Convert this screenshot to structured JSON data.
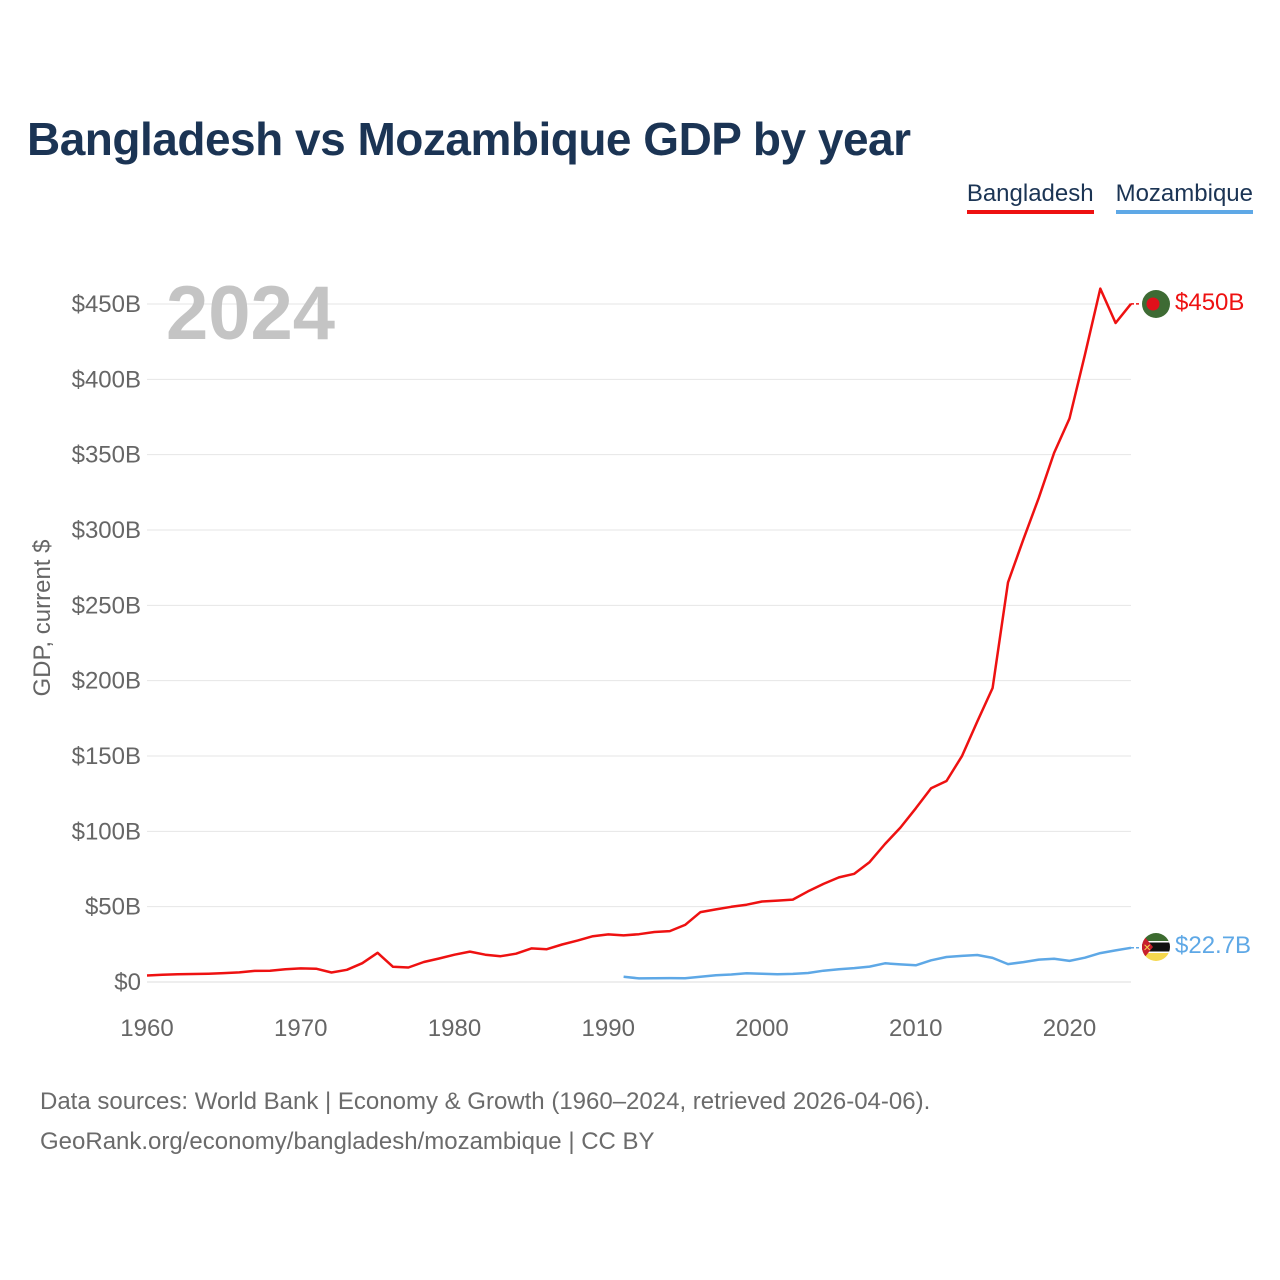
{
  "title": "Bangladesh vs Mozambique GDP by year",
  "legend": {
    "bangladesh": "Bangladesh",
    "mozambique": "Mozambique"
  },
  "colors": {
    "bangladesh": "#ee1111",
    "mozambique": "#5ea8e6",
    "text": "#1b3454",
    "axis": "#666666",
    "grid": "#e6e6e6",
    "year": "#c4c4c4"
  },
  "source": {
    "line1": "Data sources: World Bank | Economy & Growth (1960–2024, retrieved 2026-04-06).",
    "line2": "GeoRank.org/economy/bangladesh/mozambique | CC BY"
  },
  "chart_data": {
    "type": "line",
    "title": "Bangladesh vs Mozambique GDP by year",
    "xlabel": "",
    "ylabel": "GDP, current $",
    "year_label": "2024",
    "xlim": [
      1960,
      2024
    ],
    "ylim": [
      0,
      450
    ],
    "x_ticks": [
      1960,
      1970,
      1980,
      1990,
      2000,
      2010,
      2020
    ],
    "y_ticks": [
      0,
      50,
      100,
      150,
      200,
      250,
      300,
      350,
      400,
      450
    ],
    "y_tick_labels": [
      "$0",
      "$50B",
      "$100B",
      "$150B",
      "$200B",
      "$250B",
      "$300B",
      "$350B",
      "$400B",
      "$450B"
    ],
    "grid": true,
    "units": "billions USD",
    "series": [
      {
        "name": "Bangladesh",
        "end_label": "$450B",
        "x": [
          1960,
          1961,
          1962,
          1963,
          1964,
          1965,
          1966,
          1967,
          1968,
          1969,
          1970,
          1971,
          1972,
          1973,
          1974,
          1975,
          1976,
          1977,
          1978,
          1979,
          1980,
          1981,
          1982,
          1983,
          1984,
          1985,
          1986,
          1987,
          1988,
          1989,
          1990,
          1991,
          1992,
          1993,
          1994,
          1995,
          1996,
          1997,
          1998,
          1999,
          2000,
          2001,
          2002,
          2003,
          2004,
          2005,
          2006,
          2007,
          2008,
          2009,
          2010,
          2011,
          2012,
          2013,
          2014,
          2015,
          2016,
          2017,
          2018,
          2019,
          2020,
          2021,
          2022,
          2023,
          2024
        ],
        "values": [
          4.3,
          4.8,
          5.1,
          5.3,
          5.5,
          5.9,
          6.4,
          7.4,
          7.5,
          8.5,
          9.0,
          8.8,
          6.3,
          8.1,
          12.5,
          19.4,
          10.1,
          9.6,
          13.3,
          15.6,
          18.1,
          20.2,
          18.1,
          17.1,
          18.8,
          22.3,
          21.8,
          24.9,
          27.5,
          30.4,
          31.6,
          30.9,
          31.7,
          33.2,
          33.8,
          37.9,
          46.4,
          48.2,
          49.9,
          51.3,
          53.4,
          54.0,
          54.7,
          60.2,
          65.1,
          69.4,
          71.8,
          79.6,
          91.6,
          102.5,
          115.3,
          128.6,
          133.4,
          149.9,
          172.9,
          195.1,
          265.2,
          293.8,
          321.4,
          351.2,
          374.0,
          416.3,
          460.2,
          437.4,
          450.1
        ]
      },
      {
        "name": "Mozambique",
        "end_label": "$22.7B",
        "x": [
          1991,
          1992,
          1993,
          1994,
          1995,
          1996,
          1997,
          1998,
          1999,
          2000,
          2001,
          2002,
          2003,
          2004,
          2005,
          2006,
          2007,
          2008,
          2009,
          2010,
          2011,
          2012,
          2013,
          2014,
          2015,
          2016,
          2017,
          2018,
          2019,
          2020,
          2021,
          2022,
          2023,
          2024
        ],
        "values": [
          3.5,
          2.4,
          2.5,
          2.6,
          2.5,
          3.5,
          4.5,
          5.0,
          5.8,
          5.5,
          5.2,
          5.4,
          6.0,
          7.5,
          8.5,
          9.2,
          10.2,
          12.4,
          11.7,
          11.1,
          14.4,
          16.6,
          17.3,
          17.9,
          16.0,
          11.9,
          13.2,
          14.9,
          15.4,
          14.0,
          16.1,
          19.2,
          21.0,
          22.7
        ]
      }
    ]
  }
}
